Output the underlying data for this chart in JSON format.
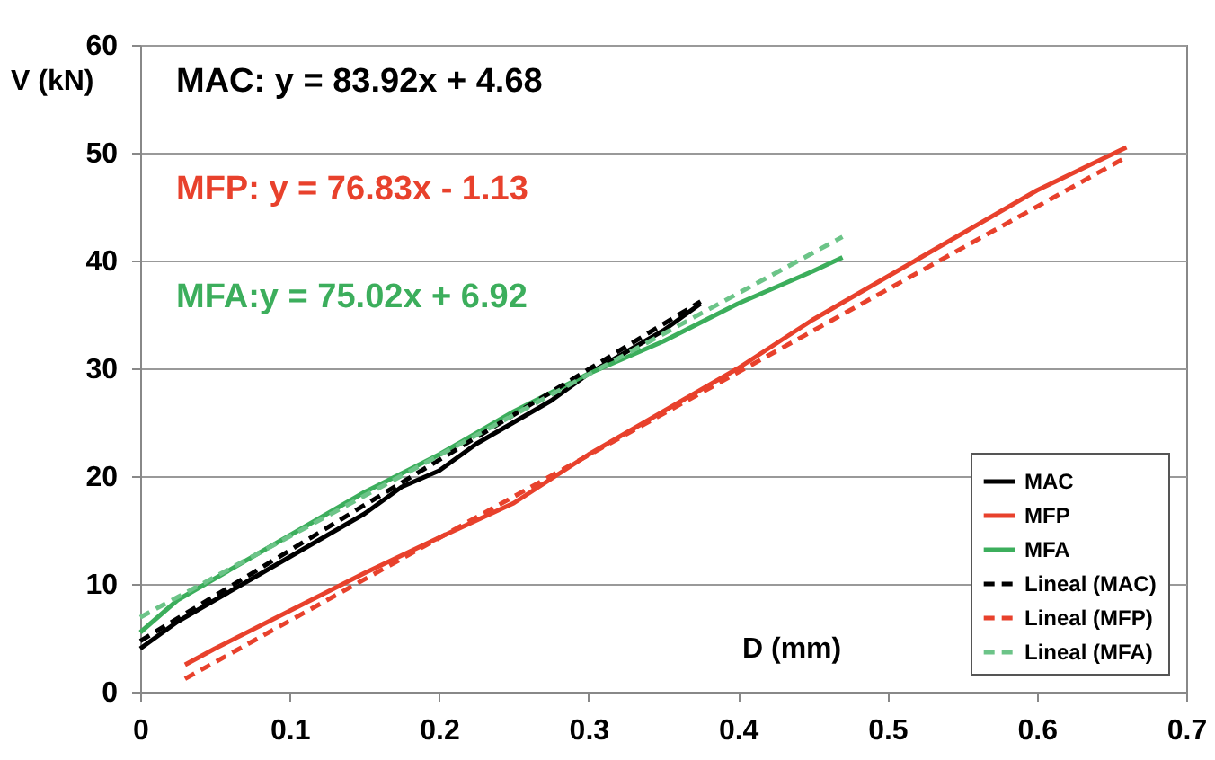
{
  "chart_data": {
    "type": "line",
    "xlabel": "D (mm)",
    "ylabel": "V (kN)",
    "annotations": [
      "MAC: y = 83.92x + 4.68",
      "MFP: y = 76.83x - 1.13",
      "MFA:y = 75.02x + 6.92"
    ],
    "xlim": [
      0,
      0.7
    ],
    "xticks": [
      0,
      0.1,
      0.2,
      0.3,
      0.4,
      0.5,
      0.6,
      0.7
    ],
    "ylim": [
      0,
      60
    ],
    "yticks": [
      0,
      10,
      20,
      30,
      40,
      50,
      60
    ],
    "grid": "y",
    "legend": "bottom right",
    "marker": "none",
    "series": [
      {
        "name": "MAC",
        "color": "#000000",
        "line_style": "solid",
        "x": [
          0,
          0.025,
          0.05,
          0.075,
          0.1,
          0.125,
          0.15,
          0.175,
          0.2,
          0.225,
          0.25,
          0.275,
          0.3,
          0.325,
          0.35,
          0.375
        ],
        "values": [
          4,
          6.5,
          8.5,
          10.5,
          12.5,
          14.5,
          16.5,
          19,
          20.5,
          23,
          25,
          27,
          29.5,
          31.5,
          33.5,
          36
        ]
      },
      {
        "name": "MFP",
        "color": "#e8412c",
        "line_style": "solid",
        "x": [
          0.03,
          0.05,
          0.1,
          0.15,
          0.2,
          0.25,
          0.3,
          0.35,
          0.4,
          0.45,
          0.5,
          0.55,
          0.6,
          0.66
        ],
        "values": [
          2.5,
          4,
          7.5,
          11,
          14.3,
          17.5,
          22,
          26,
          30,
          34.5,
          38.5,
          42.5,
          46.5,
          50.5
        ]
      },
      {
        "name": "MFA",
        "color": "#3cae5c",
        "line_style": "solid",
        "x": [
          0,
          0.025,
          0.05,
          0.1,
          0.15,
          0.2,
          0.25,
          0.3,
          0.35,
          0.4,
          0.45,
          0.47
        ],
        "values": [
          5.5,
          8.5,
          10.5,
          14.5,
          18.5,
          22,
          26,
          29.5,
          32.5,
          36,
          39,
          40.3
        ]
      },
      {
        "name": "Lineal (MAC)",
        "color": "#000000",
        "line_style": "dashed",
        "x": [
          0,
          0.375
        ],
        "values": [
          4.7,
          36.2
        ]
      },
      {
        "name": "Lineal (MFP)",
        "color": "#e8412c",
        "line_style": "dashed",
        "x": [
          0.03,
          0.66
        ],
        "values": [
          1.2,
          49.6
        ]
      },
      {
        "name": "Lineal (MFA)",
        "color": "#6cc488",
        "line_style": "dashed",
        "x": [
          0,
          0.47
        ],
        "values": [
          6.9,
          42.2
        ]
      }
    ]
  }
}
